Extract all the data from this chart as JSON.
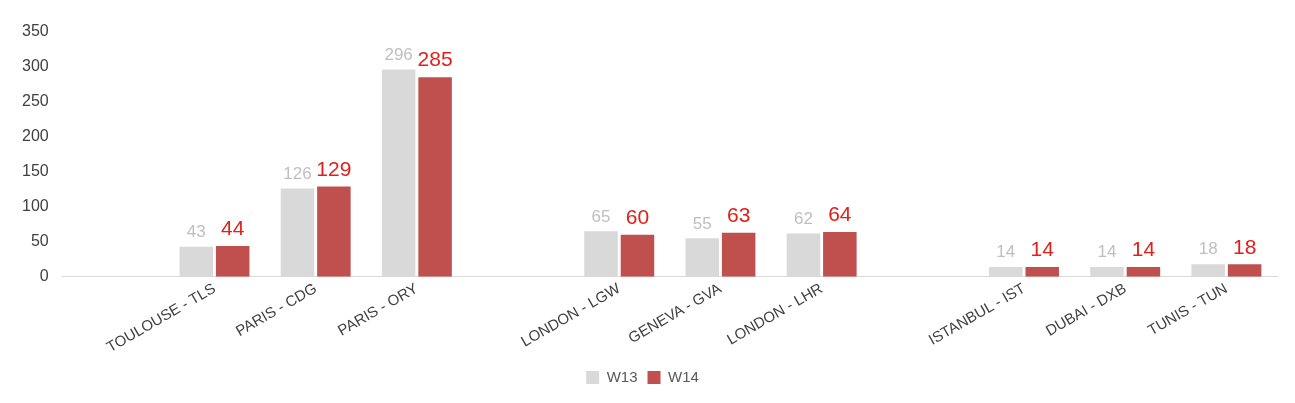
{
  "chart_data": {
    "type": "bar",
    "categories": [
      null,
      "TOULOUSE - TLS",
      "PARIS - CDG",
      "PARIS - ORY",
      null,
      "LONDON - LGW",
      "GENEVA - GVA",
      "LONDON - LHR",
      null,
      "ISTANBUL - IST",
      "DUBAI - DXB",
      "TUNIS - TUN"
    ],
    "series": [
      {
        "name": "W13",
        "color": "#d9d9d9",
        "values": [
          null,
          43,
          126,
          296,
          null,
          65,
          55,
          62,
          null,
          14,
          14,
          18
        ]
      },
      {
        "name": "W14",
        "color": "#c0504d",
        "values": [
          null,
          44,
          129,
          285,
          null,
          60,
          63,
          64,
          null,
          14,
          14,
          18
        ]
      }
    ],
    "ylim": [
      0,
      350
    ],
    "yticks": [
      0,
      50,
      100,
      150,
      200,
      250,
      300,
      350
    ],
    "grid": false,
    "legend": "bottom",
    "data_labels": true
  }
}
